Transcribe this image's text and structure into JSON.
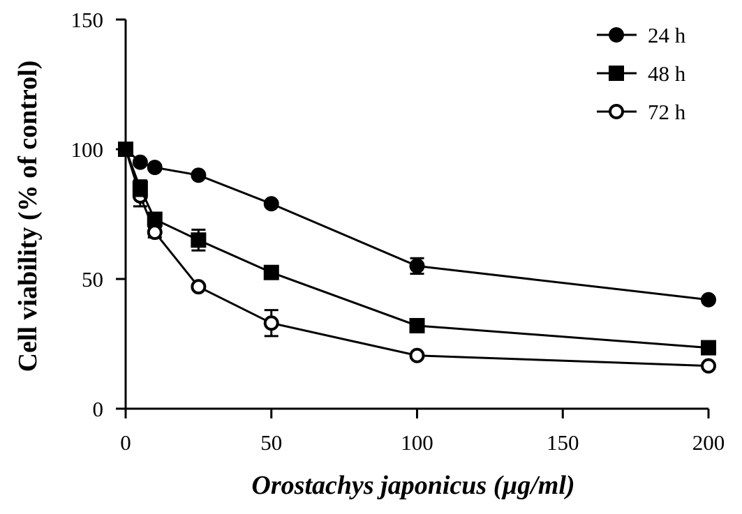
{
  "chart_data": {
    "type": "line",
    "xlabel": "Orostachys japonicus (µg/ml)",
    "ylabel": "Cell viability (% of control)",
    "xlim": [
      0,
      200
    ],
    "ylim": [
      0,
      150
    ],
    "xticks": [
      "0",
      "50",
      "100",
      "150",
      "200"
    ],
    "yticks": [
      "0",
      "50",
      "100",
      "150"
    ],
    "legend_position": "top-right",
    "grid": false,
    "x": [
      0,
      5,
      10,
      25,
      50,
      100,
      200
    ],
    "series": [
      {
        "name": "24 h",
        "marker": "filled-circle",
        "values": [
          100,
          95,
          93,
          90,
          79,
          55,
          42
        ],
        "errors": [
          1,
          1,
          1,
          1,
          1,
          3,
          1
        ]
      },
      {
        "name": "48 h",
        "marker": "filled-square",
        "values": [
          100,
          85,
          73,
          65,
          52.5,
          32,
          23.5
        ],
        "errors": [
          1,
          3,
          2,
          4,
          1,
          1,
          1
        ]
      },
      {
        "name": "72 h",
        "marker": "open-circle",
        "values": [
          100,
          82,
          68,
          47,
          33,
          20.5,
          16.5
        ],
        "errors": [
          1,
          4,
          2,
          1,
          5,
          1,
          1
        ]
      }
    ]
  }
}
